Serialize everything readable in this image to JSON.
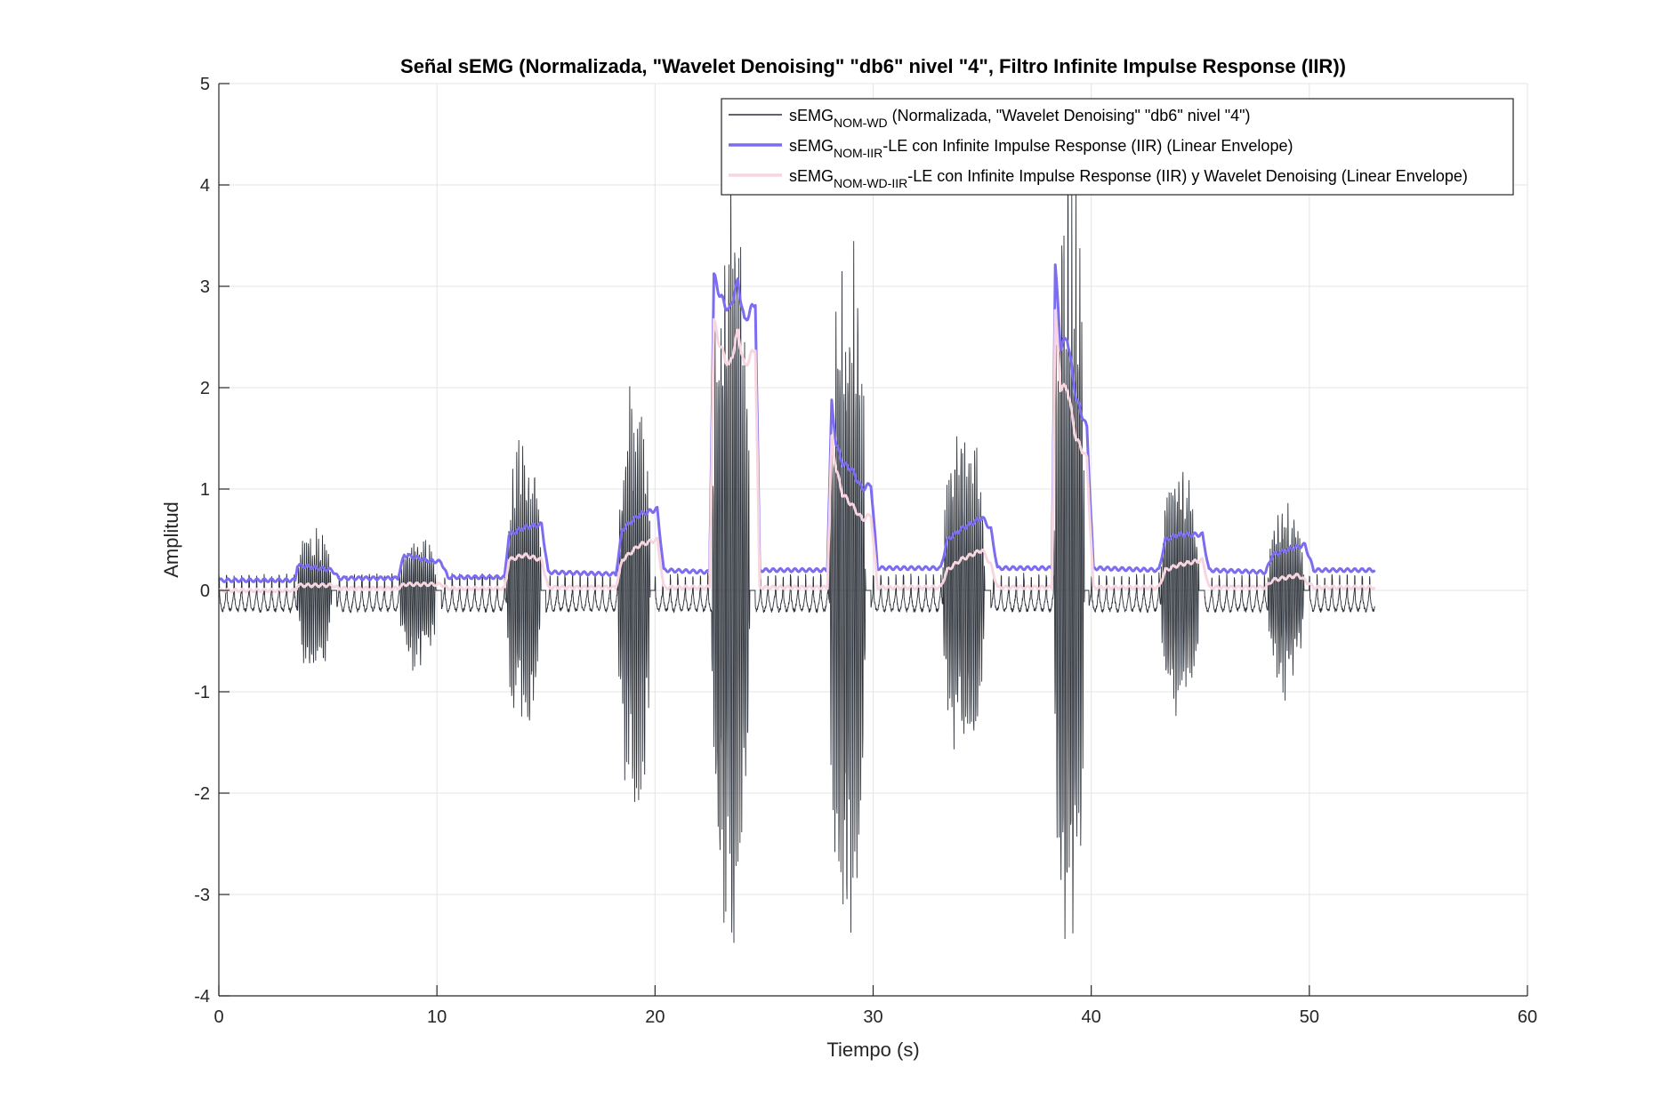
{
  "chart_data": {
    "type": "line",
    "title": "Señal sEMG (Normalizada, \"Wavelet Denoising\" \"db6\" nivel \"4\", Filtro Infinite Impulse Response (IIR))",
    "xlabel": "Tiempo (s)",
    "ylabel": "Amplitud",
    "xlim": [
      0,
      60
    ],
    "ylim": [
      -4,
      5
    ],
    "xticks": [
      0,
      10,
      20,
      30,
      40,
      50,
      60
    ],
    "yticks": [
      -4,
      -3,
      -2,
      -1,
      0,
      1,
      2,
      3,
      4,
      5
    ],
    "grid": true,
    "legend_position": "top-right",
    "legend": [
      {
        "pre": "sEMG",
        "sub": "NOM-WD",
        "post": " (Normalizada, \"Wavelet Denoising\" \"db6\" nivel \"4\")",
        "color": "#2b3038",
        "width": 1
      },
      {
        "pre": "sEMG",
        "sub": "NOM-IIR",
        "post": "-LE con Infinite Impulse Response (IIR) (Linear Envelope)",
        "color": "#7b6cf0",
        "width": 3
      },
      {
        "pre": "sEMG",
        "sub": "NOM-WD-IIR",
        "post": "-LE con Infinite Impulse Response (IIR) y Wavelet Denoising (Linear Envelope)",
        "color": "#f7d6e0",
        "width": 3
      }
    ],
    "duration_s": 53,
    "raw_bursts": [
      {
        "start": 3.6,
        "end": 5.4,
        "max": 0.65,
        "min": -0.9
      },
      {
        "start": 8.3,
        "end": 10.2,
        "max": 0.6,
        "min": -0.93
      },
      {
        "start": 13.2,
        "end": 15.0,
        "max": 1.6,
        "min": -1.55
      },
      {
        "start": 18.3,
        "end": 20.0,
        "max": 2.15,
        "min": -2.4
      },
      {
        "start": 22.6,
        "end": 24.6,
        "max": 4.65,
        "min": -3.8
      },
      {
        "start": 28.0,
        "end": 29.9,
        "max": 3.7,
        "min": -3.55
      },
      {
        "start": 33.2,
        "end": 35.4,
        "max": 1.8,
        "min": -1.9
      },
      {
        "start": 38.3,
        "end": 39.9,
        "max": 4.75,
        "min": -3.95
      },
      {
        "start": 43.2,
        "end": 45.2,
        "max": 1.4,
        "min": -1.3
      },
      {
        "start": 48.1,
        "end": 50.0,
        "max": 0.9,
        "min": -1.1
      }
    ],
    "series": [
      {
        "name": "sEMG NOM-IIR-LE con Infinite Impulse Response (IIR) (Linear Envelope)",
        "color": "#7b6cf0",
        "x": [
          0,
          3.5,
          3.6,
          4.5,
          5.2,
          5.5,
          8.2,
          8.5,
          9.5,
          10.2,
          10.5,
          13.1,
          13.3,
          14.0,
          14.8,
          15.1,
          18.2,
          18.5,
          19.3,
          20.1,
          20.4,
          22.5,
          22.7,
          23.0,
          23.4,
          23.8,
          24.1,
          24.6,
          24.8,
          27.9,
          28.1,
          28.3,
          28.6,
          29.0,
          29.5,
          29.9,
          30.2,
          33.1,
          33.4,
          34.0,
          35.0,
          35.4,
          35.7,
          38.2,
          38.35,
          38.6,
          38.9,
          39.3,
          39.8,
          40.1,
          43.1,
          43.4,
          44.0,
          45.1,
          45.4,
          48.0,
          48.3,
          49.0,
          49.8,
          50.2,
          53.0
        ],
        "y": [
          0.1,
          0.1,
          0.25,
          0.22,
          0.2,
          0.12,
          0.12,
          0.35,
          0.3,
          0.28,
          0.13,
          0.13,
          0.55,
          0.62,
          0.65,
          0.18,
          0.16,
          0.6,
          0.75,
          0.8,
          0.2,
          0.18,
          3.1,
          2.9,
          2.75,
          3.05,
          2.65,
          2.85,
          0.2,
          0.2,
          1.85,
          1.45,
          1.25,
          1.2,
          1.0,
          1.05,
          0.22,
          0.22,
          0.5,
          0.6,
          0.72,
          0.6,
          0.22,
          0.22,
          3.2,
          2.4,
          2.5,
          1.9,
          1.6,
          0.22,
          0.2,
          0.5,
          0.55,
          0.55,
          0.2,
          0.18,
          0.35,
          0.4,
          0.45,
          0.2,
          0.2
        ]
      },
      {
        "name": "sEMG NOM-WD-IIR-LE con Infinite Impulse Response (IIR) y Wavelet Denoising (Linear Envelope)",
        "color": "#f7d6e0",
        "x": [
          0,
          3.5,
          3.6,
          5.2,
          5.5,
          8.2,
          8.5,
          10.2,
          10.5,
          13.1,
          13.3,
          14.0,
          14.8,
          15.1,
          18.2,
          18.5,
          19.3,
          20.1,
          20.4,
          22.5,
          22.7,
          23.0,
          23.4,
          23.8,
          24.1,
          24.6,
          24.8,
          27.9,
          28.1,
          28.3,
          28.6,
          29.0,
          29.5,
          29.9,
          30.2,
          33.1,
          33.4,
          34.0,
          35.0,
          35.4,
          35.7,
          38.2,
          38.35,
          38.6,
          38.9,
          39.3,
          39.8,
          40.1,
          43.1,
          43.4,
          44.0,
          45.1,
          45.4,
          48.0,
          48.3,
          49.5,
          50.2,
          53.0
        ],
        "y": [
          0.0,
          0.0,
          0.05,
          0.05,
          0.02,
          0.02,
          0.06,
          0.06,
          0.02,
          0.02,
          0.3,
          0.35,
          0.3,
          0.03,
          0.03,
          0.3,
          0.45,
          0.5,
          0.03,
          0.03,
          2.65,
          2.4,
          2.2,
          2.55,
          2.2,
          2.4,
          0.03,
          0.03,
          1.5,
          1.2,
          0.95,
          0.85,
          0.7,
          0.75,
          0.03,
          0.03,
          0.2,
          0.3,
          0.4,
          0.25,
          0.03,
          0.03,
          2.75,
          2.0,
          2.0,
          1.5,
          1.3,
          0.03,
          0.03,
          0.2,
          0.25,
          0.3,
          0.03,
          0.03,
          0.1,
          0.15,
          0.03,
          0.03
        ]
      }
    ]
  }
}
